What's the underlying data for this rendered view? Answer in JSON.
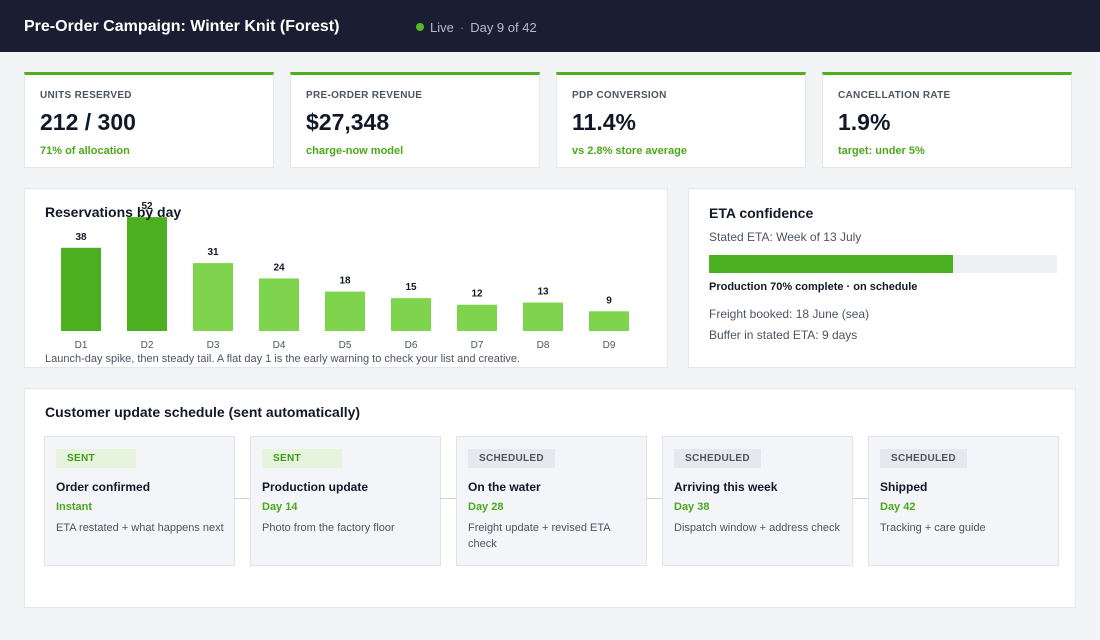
{
  "header": {
    "title": "Pre-Order Campaign: Winter Knit (Forest)",
    "status": "Live",
    "day": "Day 9 of 42",
    "status_color": "#52b82a"
  },
  "kpis": [
    {
      "label": "UNITS RESERVED",
      "value": "212 / 300",
      "sub": "71% of allocation"
    },
    {
      "label": "PRE-ORDER REVENUE",
      "value": "$27,348",
      "sub": "charge-now model"
    },
    {
      "label": "PDP CONVERSION",
      "value": "11.4%",
      "sub": "vs 2.8% store average"
    },
    {
      "label": "CANCELLATION RATE",
      "value": "1.9%",
      "sub": "target: under 5%"
    }
  ],
  "chart_data": {
    "type": "bar",
    "title": "Reservations by day",
    "categories": [
      "D1",
      "D2",
      "D3",
      "D4",
      "D5",
      "D6",
      "D7",
      "D8",
      "D9"
    ],
    "values": [
      38,
      52,
      31,
      24,
      18,
      15,
      12,
      13,
      9
    ],
    "colors": {
      "high": "#4caf1f",
      "low": "#7ed44d"
    },
    "caption": "Launch-day spike, then steady tail. A flat day 1 is the early warning to check your list and creative."
  },
  "eta": {
    "title": "ETA confidence",
    "stated": "Stated ETA: Week of 13 July",
    "progress": 0.7,
    "production": "Production 70% complete  ·  on schedule",
    "freight": "Freight booked: 18 June (sea)",
    "buffer": "Buffer in stated ETA: 9 days"
  },
  "schedule": {
    "title": "Customer update schedule (sent automatically)",
    "steps": [
      {
        "status": "SENT",
        "name": "Order confirmed",
        "when": "Instant",
        "desc": "ETA restated + what happens next"
      },
      {
        "status": "SENT",
        "name": "Production update",
        "when": "Day 14",
        "desc": "Photo from the factory floor"
      },
      {
        "status": "SCHEDULED",
        "name": "On the water",
        "when": "Day 28",
        "desc": "Freight update + revised ETA check"
      },
      {
        "status": "SCHEDULED",
        "name": "Arriving this week",
        "when": "Day 38",
        "desc": "Dispatch window + address check"
      },
      {
        "status": "SCHEDULED",
        "name": "Shipped",
        "when": "Day 42",
        "desc": "Tracking + care guide"
      }
    ]
  }
}
